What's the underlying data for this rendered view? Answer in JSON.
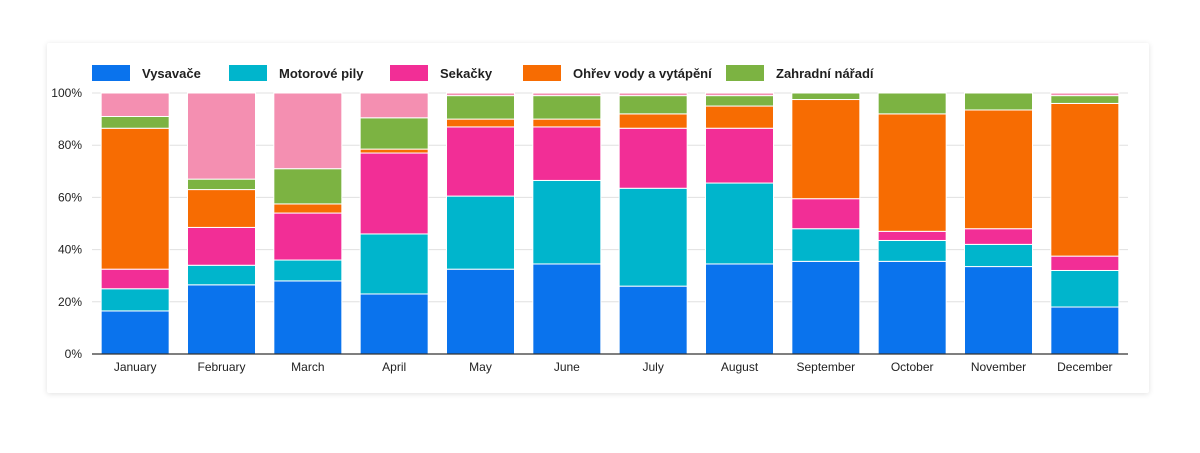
{
  "chart_data": {
    "type": "bar",
    "stacked": true,
    "categories": [
      "January",
      "February",
      "March",
      "April",
      "May",
      "June",
      "July",
      "August",
      "September",
      "October",
      "November",
      "December"
    ],
    "series": [
      {
        "name": "Vysavače",
        "color": "#0a73ed",
        "values": [
          16.5,
          26.5,
          28,
          23,
          32.5,
          34.5,
          26,
          34.5,
          35.5,
          35.5,
          33.5,
          18
        ]
      },
      {
        "name": "Motorové pily",
        "color": "#00b5cc",
        "values": [
          8.5,
          7.5,
          8,
          23,
          28,
          32,
          37.5,
          31,
          12.5,
          8,
          8.5,
          14
        ]
      },
      {
        "name": "Sekačky",
        "color": "#f22e96",
        "values": [
          7.5,
          14.5,
          18,
          31,
          26.5,
          20.5,
          23,
          21,
          11.5,
          3.5,
          6,
          5.5
        ]
      },
      {
        "name": "Ohřev vody a vytápění",
        "color": "#f76c02",
        "values": [
          54,
          14.5,
          3.5,
          1.5,
          3,
          3,
          5.5,
          8.5,
          38,
          45,
          45.5,
          58.5
        ]
      },
      {
        "name": "Zahradní nářadí",
        "color": "#7cb342",
        "values": [
          4.5,
          4,
          13.5,
          12,
          9,
          9,
          7,
          4,
          2.5,
          8,
          6.5,
          3
        ]
      },
      {
        "name": "",
        "color": "#f48fb1",
        "values": [
          9,
          33,
          29,
          9.5,
          1,
          1,
          1,
          1,
          0,
          0,
          0,
          1
        ]
      }
    ],
    "ylim": [
      0,
      100
    ],
    "yticks": [
      "0%",
      "20%",
      "40%",
      "60%",
      "80%",
      "100%"
    ],
    "grid": true,
    "legend_position": "top-left"
  }
}
